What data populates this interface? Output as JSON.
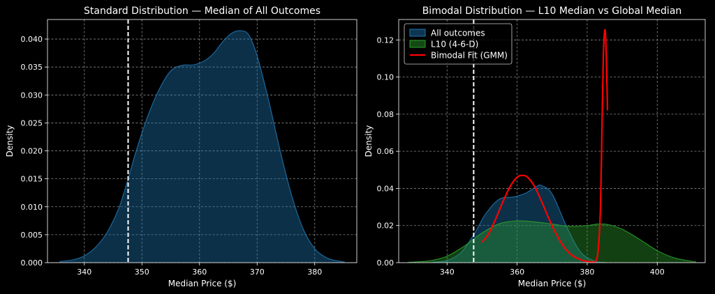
{
  "chart_data": [
    {
      "type": "area",
      "title": "Standard Distribution — Median of All Outcomes",
      "xlabel": "Median Price ($)",
      "ylabel": "Density",
      "xlim": [
        333.6,
        387.3
      ],
      "ylim": [
        0,
        0.0435
      ],
      "xticks": [
        340,
        350,
        360,
        370,
        380
      ],
      "yticks": [
        0,
        0.005,
        0.01,
        0.015,
        0.02,
        0.025,
        0.03,
        0.035,
        0.04
      ],
      "ytick_labels": [
        "0.000",
        "0.005",
        "0.010",
        "0.015",
        "0.020",
        "0.025",
        "0.030",
        "0.035",
        "0.040"
      ],
      "grid": true,
      "vline": 347.6,
      "series": [
        {
          "name": "All outcomes",
          "color": "#1f77b4",
          "x": [
            335.7,
            338,
            340,
            342,
            344,
            346,
            347.6,
            349,
            351,
            353,
            355,
            357,
            359,
            361,
            362.5,
            364,
            365.5,
            367,
            368.5,
            370,
            372,
            374,
            376,
            378,
            380,
            382,
            383.5,
            385.2
          ],
          "y": [
            0.0002,
            0.0005,
            0.0012,
            0.0028,
            0.0055,
            0.0098,
            0.015,
            0.02,
            0.0262,
            0.031,
            0.0343,
            0.0353,
            0.0354,
            0.0362,
            0.0375,
            0.0395,
            0.041,
            0.0415,
            0.0408,
            0.037,
            0.029,
            0.02,
            0.012,
            0.006,
            0.0025,
            0.0009,
            0.0004,
            0.0001
          ]
        }
      ]
    },
    {
      "type": "area",
      "title": "Bimodal Distribution — L10 Median vs Global Median",
      "xlabel": "Median Price ($)",
      "ylabel": "Density",
      "xlim": [
        326.2,
        413.7
      ],
      "ylim": [
        0,
        0.131
      ],
      "xticks": [
        340,
        360,
        380,
        400
      ],
      "yticks": [
        0,
        0.02,
        0.04,
        0.06,
        0.08,
        0.1,
        0.12
      ],
      "ytick_labels": [
        "0.00",
        "0.02",
        "0.04",
        "0.06",
        "0.08",
        "0.10",
        "0.12"
      ],
      "grid": true,
      "vline": 347.6,
      "legend_position": "top-left",
      "series": [
        {
          "name": "All outcomes",
          "kind": "area",
          "color": "#1f77b4",
          "x": [
            335.7,
            340,
            344,
            347.6,
            351,
            355,
            359,
            362.5,
            365.5,
            367,
            370,
            374,
            378,
            382,
            385.2
          ],
          "y": [
            0.0002,
            0.0012,
            0.0055,
            0.015,
            0.0262,
            0.0343,
            0.0354,
            0.0375,
            0.041,
            0.0415,
            0.037,
            0.02,
            0.006,
            0.0009,
            0.0001
          ]
        },
        {
          "name": "L10 (4-6-D)",
          "kind": "area",
          "color": "#2ca02c",
          "x": [
            329,
            335,
            340,
            345,
            350,
            355,
            360,
            365,
            370,
            375,
            380,
            383,
            386,
            390,
            395,
            400,
            405,
            411
          ],
          "y": [
            0.0002,
            0.001,
            0.0035,
            0.009,
            0.016,
            0.021,
            0.0225,
            0.022,
            0.0208,
            0.0195,
            0.02,
            0.0208,
            0.0205,
            0.018,
            0.0125,
            0.0065,
            0.0025,
            0.0004
          ]
        },
        {
          "name": "Bimodal Fit (GMM)",
          "kind": "line",
          "color": "#ff0000",
          "x": [
            350,
            352,
            354,
            356,
            358,
            360,
            361.5,
            363,
            365,
            367,
            369,
            371,
            373,
            375,
            377,
            379,
            381,
            382.5,
            383.2,
            383.8,
            384.2,
            384.6,
            385,
            385.3,
            385.6,
            385.8
          ],
          "y": [
            0.011,
            0.016,
            0.024,
            0.033,
            0.041,
            0.046,
            0.047,
            0.046,
            0.041,
            0.033,
            0.024,
            0.016,
            0.0095,
            0.005,
            0.0025,
            0.001,
            0.0005,
            0.001,
            0.008,
            0.03,
            0.07,
            0.11,
            0.125,
            0.12,
            0.1,
            0.082
          ]
        }
      ]
    }
  ]
}
